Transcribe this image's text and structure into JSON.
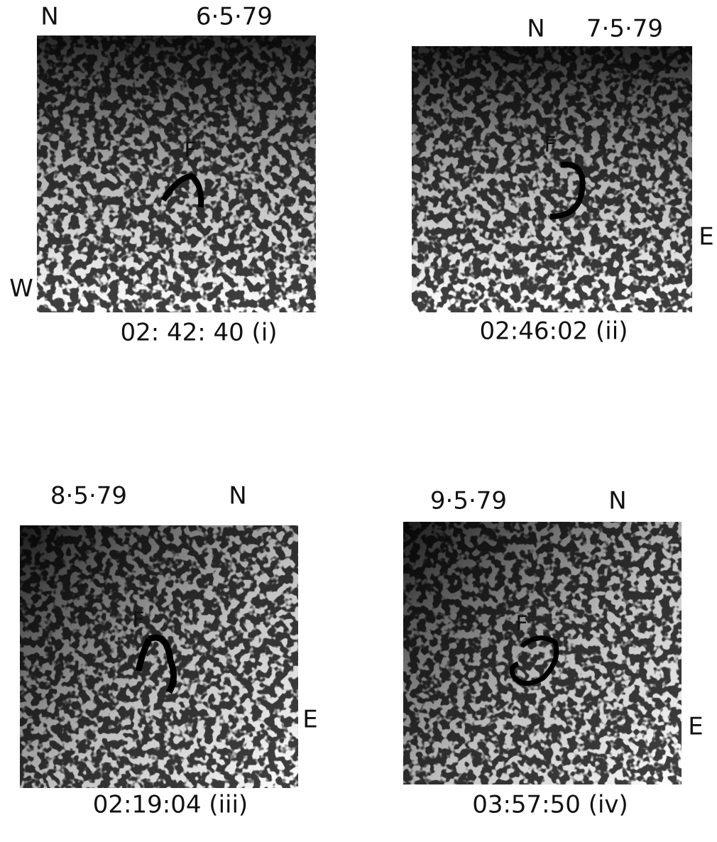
{
  "panels": [
    {
      "date": "6·5·79",
      "north": "N",
      "west": "W",
      "feature": "F",
      "caption": "02: 42: 40  (i)"
    },
    {
      "date": "7·5·79",
      "north": "N",
      "east": "E",
      "feature": "F",
      "caption": "02:46:02 (ii)"
    },
    {
      "date": "8·5·79",
      "north": "N",
      "east": "E",
      "feature": "F",
      "caption": "02:19:04 (iii)"
    },
    {
      "date": "9·5·79",
      "north": "N",
      "east": "E",
      "feature": "F",
      "caption": "03:57:50 (iv)"
    }
  ]
}
